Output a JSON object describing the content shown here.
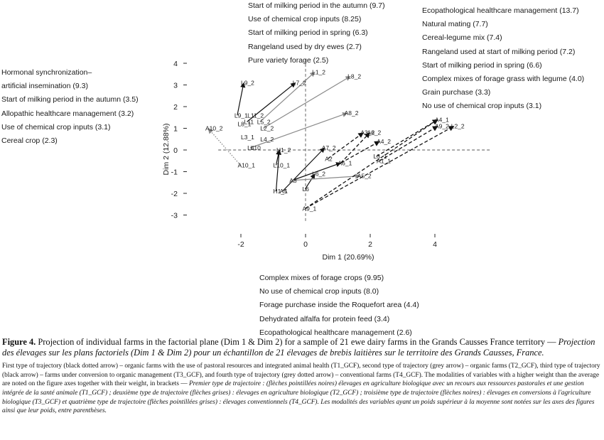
{
  "figure": {
    "top_list": [
      "Start of milking period in the autumn (9.7)",
      "Use of chemical crop inputs (8.25)",
      "Start of milking period in spring (6.3)",
      "Rangeland used by dry ewes (2.7)",
      "Pure variety forage (2.5)"
    ],
    "right_list": [
      "Ecopathological healthcare management (13.7)",
      "Natural mating (7.7)",
      "Cereal-legume mix (7.4)",
      "Rangeland used at start of milking period (7.2)",
      "Start of milking period in spring (6.6)",
      "Complex mixes of forage grass with legume (4.0)",
      "Grain purchase (3.3)",
      "No use of chemical crop inputs (3.1)"
    ],
    "left_list": [
      "Hormonal synchronization–",
      "artificial insemination (9.3)",
      "Start of milking period in the autumn (3.5)",
      "Allopathic healthcare management (3.2)",
      "Use of chemical crop inputs (3.1)",
      "Cereal crop (2.3)"
    ],
    "bottom_list": [
      "Complex mixes of forage crops (9.95)",
      "No use of chemical crop inputs (8.0)",
      "Forage purchase inside the Roquefort area (4.4)",
      "Dehydrated alfalfa for protein feed (3.4)",
      "Ecopathological healthcare management (2.6)"
    ]
  },
  "chart_data": {
    "type": "scatter",
    "xlabel": "Dim 1 (20.69%)",
    "ylabel": "Dim 2 (12.88%)",
    "xlim": [
      -2.7,
      5.7
    ],
    "ylim": [
      -3.3,
      4.2
    ],
    "x_ticks": [
      "-2",
      "0",
      "2",
      "4"
    ],
    "x_tick_values": [
      -2,
      0,
      2,
      4
    ],
    "y_ticks": [
      "4",
      "3",
      "2",
      "1",
      "0",
      "-1",
      "-2",
      "-3"
    ],
    "y_tick_values": [
      4,
      3,
      2,
      1,
      0,
      -1,
      -2,
      -3
    ],
    "reference_lines": "dashed at x=0 and y=0",
    "points": [
      {
        "label": "L1_2",
        "x": 0.2,
        "y": 3.5
      },
      {
        "label": "L8_2",
        "x": 1.3,
        "y": 3.3
      },
      {
        "label": "L7_2",
        "x": -0.4,
        "y": 3.0
      },
      {
        "label": "L9_2",
        "x": -2.0,
        "y": 3.0
      },
      {
        "label": "L9_1",
        "x": -2.2,
        "y": 1.5
      },
      {
        "label": "L8_1",
        "x": -2.1,
        "y": 1.1
      },
      {
        "label": "L11_2",
        "x": -1.8,
        "y": 1.5
      },
      {
        "label": "L11",
        "x": -1.9,
        "y": 1.2
      },
      {
        "label": "L5_2",
        "x": -1.5,
        "y": 1.2
      },
      {
        "label": "L2_2",
        "x": -1.4,
        "y": 0.9
      },
      {
        "label": "L3_1",
        "x": -2.0,
        "y": 0.5
      },
      {
        "label": "L4_2",
        "x": -1.4,
        "y": 0.4
      },
      {
        "label": "L4",
        "x": -1.8,
        "y": 0.0
      },
      {
        "label": "L10",
        "x": -1.7,
        "y": 0.0
      },
      {
        "label": "H1_2",
        "x": -0.9,
        "y": -0.1
      },
      {
        "label": "L10_1",
        "x": -1.0,
        "y": -0.8
      },
      {
        "label": "A10_2",
        "x": -3.1,
        "y": 0.9
      },
      {
        "label": "A10_1",
        "x": -2.1,
        "y": -0.8
      },
      {
        "label": "A8_2",
        "x": 1.2,
        "y": 1.6
      },
      {
        "label": "A3_2",
        "x": 1.7,
        "y": 0.7
      },
      {
        "label": "A6_2",
        "x": 1.9,
        "y": 0.7
      },
      {
        "label": "A4_2",
        "x": 2.2,
        "y": 0.3
      },
      {
        "label": "A7_2",
        "x": 0.5,
        "y": 0.0
      },
      {
        "label": "A2",
        "x": 0.6,
        "y": -0.5
      },
      {
        "label": "A6_1",
        "x": 1.0,
        "y": -0.7
      },
      {
        "label": "L3_1b",
        "x": 2.1,
        "y": -0.4
      },
      {
        "label": "A1_1",
        "x": 2.2,
        "y": -0.6
      },
      {
        "label": "L6_2",
        "x": 0.2,
        "y": -1.2
      },
      {
        "label": "A5_2",
        "x": 1.6,
        "y": -1.3
      },
      {
        "label": "L6",
        "x": -0.1,
        "y": -1.9
      },
      {
        "label": "A8",
        "x": -0.5,
        "y": -1.5
      },
      {
        "label": "H1_1",
        "x": -1.0,
        "y": -2.0
      },
      {
        "label": "A5",
        "x": -0.8,
        "y": -2.0
      },
      {
        "label": "A9_1",
        "x": -0.1,
        "y": -2.8
      },
      {
        "label": "A4_1",
        "x": 4.0,
        "y": 1.3
      },
      {
        "label": "A9_2",
        "x": 4.0,
        "y": 1.0
      },
      {
        "label": "L2_2b",
        "x": 4.5,
        "y": 1.0
      }
    ]
  },
  "caption": {
    "fig_label": "Figure 4.",
    "fig_en": "Projection of individual farms in the factorial plane (Dim 1 & Dim 2) for a sample of 21 ewe dairy farms in the Grands Causses France territory —",
    "fig_fr": "Projection des élevages sur les plans factoriels (Dim 1 & Dim 2) pour un échantillon de 21 élevages de brebis laitières sur le territoire des Grands Causses, France.",
    "note_en": "First type of trajectory (black dotted arrow) – organic farms with the use of pastoral resources and integrated animal health (T1_GCF), second type of trajectory (grey arrow) – organic farms (T2_GCF), third type of trajectory (black arrow) – farms under conversion to organic management (T3_GCF), and fourth type of trajectory (grey dotted arrow) – conventional farms (T4_GCF). The modalities of variables with a higher weight than the average are noted on the figure axes together with their weight, in brackets —",
    "note_fr": "Premier type de trajectoire : (flèches pointillées noires) élevages en agriculture biologique avec un recours aux ressources pastorales et une gestion intégrée de la santé animale (T1_GCF) ; deuxième type de trajectoire (flèches grises) : élevages en agriculture biologique (T2_GCF) ; troisième type de trajectoire (flèches noires) : élevages en conversions à l'agriculture biologique (T3_GCF) et quatrième type de trajectoire (flèches pointillées grises) : élevages conventionnels (T4_GCF). Les modalités des variables ayant un poids supérieur à la moyenne sont notées sur les axes des figures ainsi que leur poids, entre parenthèses."
  }
}
